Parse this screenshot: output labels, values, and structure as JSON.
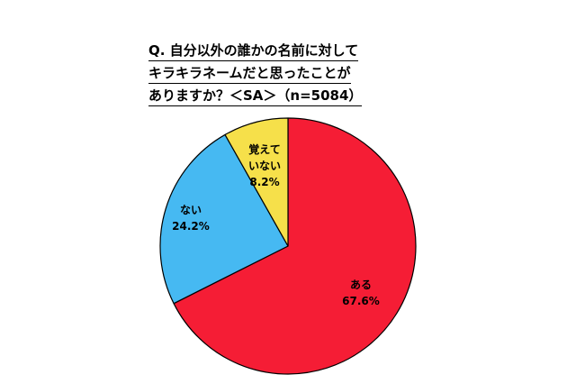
{
  "chart_data": {
    "type": "pie",
    "title_lines": [
      "Q. 自分以外の誰かの名前に対して",
      "キラキラネームだと思ったことが",
      "ありますか？＜SA＞（n=5084）"
    ],
    "slices": [
      {
        "label": "ある",
        "value": 67.6,
        "value_text": "67.6%",
        "color": "#f51d35"
      },
      {
        "label": "ない",
        "value": 24.2,
        "value_text": "24.2%",
        "color": "#46b9f2"
      },
      {
        "label_lines": [
          "覚えて",
          "いない"
        ],
        "value": 8.2,
        "value_text": "8.2%",
        "color": "#f6e04a"
      }
    ],
    "start_angle_deg": 0,
    "direction": "clockwise"
  }
}
